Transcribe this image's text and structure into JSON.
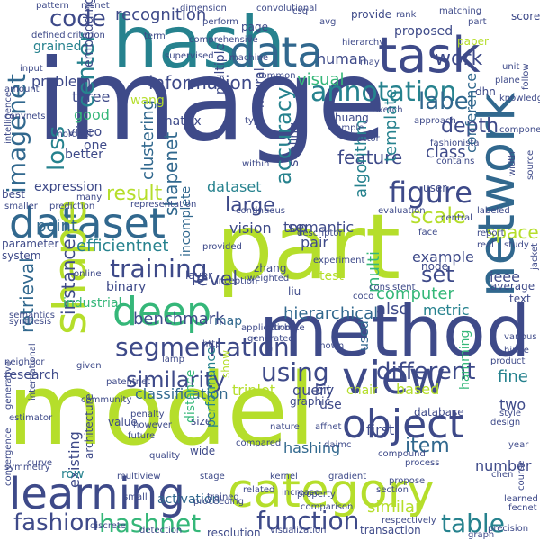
{
  "palette": {
    "background": "#ffffff",
    "navy": "#3e4a89",
    "blue": "#31688e",
    "teal": "#26828e",
    "green": "#35b779",
    "lime": "#b5de2b",
    "purple": "#482878"
  },
  "words": [
    {
      "text": "image",
      "color": "#3e4a89"
    },
    {
      "text": "model",
      "color": "#b5de2b"
    },
    {
      "text": "part",
      "color": "#b5de2b"
    },
    {
      "text": "hash",
      "color": "#26828e"
    },
    {
      "text": "method",
      "color": "#3e4a89"
    },
    {
      "text": "network",
      "color": "#31688e"
    },
    {
      "text": "dataset",
      "color": "#31688e"
    },
    {
      "text": "learning",
      "color": "#3e4a89"
    },
    {
      "text": "category",
      "color": "#b5de2b"
    },
    {
      "text": "object",
      "color": "#3e4a89"
    },
    {
      "text": "view",
      "color": "#3e4a89"
    },
    {
      "text": "data",
      "color": "#31688e"
    },
    {
      "text": "task",
      "color": "#3e4a89"
    },
    {
      "text": "shape",
      "color": "#b5de2b"
    },
    {
      "text": "deep",
      "color": "#35b779"
    },
    {
      "text": "segmentation",
      "color": "#3e4a89"
    },
    {
      "text": "annotation",
      "color": "#26828e"
    },
    {
      "text": "figure",
      "color": "#3e4a89"
    },
    {
      "text": "training",
      "color": "#3e4a89"
    },
    {
      "text": "function",
      "color": "#3e4a89"
    },
    {
      "text": "fashion",
      "color": "#3e4a89"
    },
    {
      "text": "different",
      "color": "#3e4a89"
    },
    {
      "text": "similarity",
      "color": "#3e4a89"
    },
    {
      "text": "using",
      "color": "#3e4a89"
    },
    {
      "text": "table",
      "color": "#26828e"
    },
    {
      "text": "hashnet",
      "color": "#35b779"
    },
    {
      "text": "imagenet",
      "color": "#31688e"
    },
    {
      "text": "code",
      "color": "#3e4a89"
    },
    {
      "text": "center",
      "color": "#26828e"
    },
    {
      "text": "loss",
      "color": "#26828e"
    },
    {
      "text": "accuracy",
      "color": "#26828e"
    },
    {
      "text": "label",
      "color": "#31688e"
    },
    {
      "text": "recognition",
      "color": "#3e4a89"
    },
    {
      "text": "information",
      "color": "#3e4a89"
    },
    {
      "text": "result",
      "color": "#b5de2b"
    },
    {
      "text": "large",
      "color": "#3e4a89"
    },
    {
      "text": "level",
      "color": "#3e4a89"
    },
    {
      "text": "set",
      "color": "#3e4a89"
    },
    {
      "text": "scale",
      "color": "#b5de2b"
    },
    {
      "text": "multi",
      "color": "#35b779"
    },
    {
      "text": "retrieval",
      "color": "#31688e"
    },
    {
      "text": "instance",
      "color": "#3e4a89"
    },
    {
      "text": "point",
      "color": "#31688e"
    },
    {
      "text": "efficientnet",
      "color": "#26828e"
    },
    {
      "text": "benchmark",
      "color": "#3e4a89"
    },
    {
      "text": "hierarchical",
      "color": "#31688e"
    },
    {
      "text": "classification",
      "color": "#31688e"
    },
    {
      "text": "item",
      "color": "#31688e"
    },
    {
      "text": "existing",
      "color": "#3e4a89"
    },
    {
      "text": "activation",
      "color": "#31688e"
    },
    {
      "text": "hashing",
      "color": "#31688e"
    },
    {
      "text": "similar",
      "color": "#b5de2b"
    },
    {
      "text": "number",
      "color": "#3e4a89"
    },
    {
      "text": "feature",
      "color": "#3e4a89"
    },
    {
      "text": "shapenet",
      "color": "#31688e"
    },
    {
      "text": "clustering",
      "color": "#31688e"
    },
    {
      "text": "depth",
      "color": "#3e4a89"
    },
    {
      "text": "work",
      "color": "#3e4a89"
    },
    {
      "text": "proposed",
      "color": "#3e4a89"
    },
    {
      "text": "human",
      "color": "#3e4a89"
    },
    {
      "text": "visual",
      "color": "#35b779"
    },
    {
      "text": "class",
      "color": "#3e4a89"
    },
    {
      "text": "template",
      "color": "#26828e"
    },
    {
      "text": "conference",
      "color": "#31688e"
    },
    {
      "text": "algorithm",
      "color": "#26828e"
    },
    {
      "text": "semantic",
      "color": "#3e4a89"
    },
    {
      "text": "top",
      "color": "#3e4a89"
    },
    {
      "text": "vision",
      "color": "#3e4a89"
    },
    {
      "text": "dataset",
      "color": "#26828e"
    },
    {
      "text": "pair",
      "color": "#3e4a89"
    },
    {
      "text": "space",
      "color": "#b5de2b"
    },
    {
      "text": "example",
      "color": "#3e4a89"
    },
    {
      "text": "computer",
      "color": "#35b779"
    },
    {
      "text": "ieee",
      "color": "#3e4a89"
    },
    {
      "text": "metric",
      "color": "#26828e"
    },
    {
      "text": "also",
      "color": "#3e4a89"
    },
    {
      "text": "based",
      "color": "#b5de2b"
    },
    {
      "text": "fine",
      "color": "#26828e"
    },
    {
      "text": "triplet",
      "color": "#b5de2b"
    },
    {
      "text": "query",
      "color": "#3e4a89"
    },
    {
      "text": "hamming",
      "color": "#35b779"
    },
    {
      "text": "two",
      "color": "#3e4a89"
    },
    {
      "text": "three",
      "color": "#3e4a89"
    },
    {
      "text": "good",
      "color": "#35b779"
    },
    {
      "text": "one",
      "color": "#3e4a89"
    },
    {
      "text": "better",
      "color": "#3e4a89"
    },
    {
      "text": "video",
      "color": "#3e4a89"
    },
    {
      "text": "problem",
      "color": "#3e4a89"
    },
    {
      "text": "expression",
      "color": "#3e4a89"
    },
    {
      "text": "matrix",
      "color": "#3e4a89"
    },
    {
      "text": "embedding",
      "color": "#3e4a89"
    },
    {
      "text": "wang",
      "color": "#b5de2b"
    },
    {
      "text": "grained",
      "color": "#26828e"
    },
    {
      "text": "multiple",
      "color": "#3e4a89"
    },
    {
      "text": "scaling",
      "color": "#3e4a89"
    },
    {
      "text": "neural",
      "color": "#3e4a89"
    },
    {
      "text": "incomplete",
      "color": "#31688e"
    },
    {
      "text": "industrial",
      "color": "#35b779"
    },
    {
      "text": "binary",
      "color": "#3e4a89"
    },
    {
      "text": "map",
      "color": "#31688e"
    },
    {
      "text": "used",
      "color": "#31688e"
    },
    {
      "text": "performance",
      "color": "#26828e"
    },
    {
      "text": "distance",
      "color": "#35b779"
    },
    {
      "text": "bit",
      "color": "#3e4a89"
    },
    {
      "text": "use",
      "color": "#3e4a89"
    },
    {
      "text": "first",
      "color": "#3e4a89"
    },
    {
      "text": "chair",
      "color": "#b5de2b"
    },
    {
      "text": "research",
      "color": "#3e4a89"
    },
    {
      "text": "row",
      "color": "#26828e"
    },
    {
      "text": "architecture",
      "color": "#3e4a89"
    },
    {
      "text": "value",
      "color": "#3e4a89"
    },
    {
      "text": "size",
      "color": "#3e4a89"
    },
    {
      "text": "wide",
      "color": "#3e4a89"
    },
    {
      "text": "graphic",
      "color": "#3e4a89"
    },
    {
      "text": "database",
      "color": "#3e4a89"
    },
    {
      "text": "resolution",
      "color": "#3e4a89"
    },
    {
      "text": "transaction",
      "color": "#3e4a89"
    },
    {
      "text": "average",
      "color": "#3e4a89"
    },
    {
      "text": "text",
      "color": "#3e4a89"
    },
    {
      "text": "node",
      "color": "#3e4a89"
    },
    {
      "text": "layer",
      "color": "#3e4a89"
    },
    {
      "text": "system",
      "color": "#3e4a89"
    },
    {
      "text": "parameter",
      "color": "#3e4a89"
    },
    {
      "text": "show",
      "color": "#b5de2b"
    },
    {
      "text": "zhang",
      "color": "#3e4a89"
    },
    {
      "text": "liu",
      "color": "#3e4a89"
    },
    {
      "text": "test",
      "color": "#b5de2b"
    },
    {
      "text": "pattern",
      "color": "#3e4a89"
    },
    {
      "text": "resnet",
      "color": "#3e4a89"
    },
    {
      "text": "page",
      "color": "#3e4a89"
    },
    {
      "text": "provide",
      "color": "#3e4a89"
    },
    {
      "text": "paper",
      "color": "#b5de2b"
    },
    {
      "text": "score",
      "color": "#3e4a89"
    },
    {
      "text": "sample",
      "color": "#3e4a89"
    },
    {
      "text": "huang",
      "color": "#3e4a89"
    },
    {
      "text": "contains",
      "color": "#3e4a89"
    },
    {
      "text": "fashionista",
      "color": "#3e4a89"
    },
    {
      "text": "dhn",
      "color": "#3e4a89"
    },
    {
      "text": "compared",
      "color": "#3e4a89"
    },
    {
      "text": "quality",
      "color": "#3e4a89"
    },
    {
      "text": "penalty",
      "color": "#3e4a89"
    },
    {
      "text": "however",
      "color": "#3e4a89"
    },
    {
      "text": "future",
      "color": "#3e4a89"
    },
    {
      "text": "coco",
      "color": "#3e4a89"
    },
    {
      "text": "experiment",
      "color": "#3e4a89"
    },
    {
      "text": "given",
      "color": "#3e4a89"
    },
    {
      "text": "patentnet",
      "color": "#3e4a89"
    },
    {
      "text": "within",
      "color": "#3e4a89"
    },
    {
      "text": "supervised",
      "color": "#3e4a89"
    },
    {
      "text": "convolutional",
      "color": "#3e4a89"
    },
    {
      "text": "stage",
      "color": "#3e4a89"
    },
    {
      "text": "increase",
      "color": "#3e4a89"
    },
    {
      "text": "comparison",
      "color": "#3e4a89"
    },
    {
      "text": "respectively",
      "color": "#3e4a89"
    },
    {
      "text": "section",
      "color": "#3e4a89"
    },
    {
      "text": "precision",
      "color": "#3e4a89"
    },
    {
      "text": "course",
      "color": "#3e4a89"
    },
    {
      "text": "chen",
      "color": "#3e4a89"
    },
    {
      "text": "visualization",
      "color": "#3e4a89"
    },
    {
      "text": "proceeding",
      "color": "#3e4a89"
    },
    {
      "text": "trained",
      "color": "#3e4a89"
    },
    {
      "text": "international",
      "color": "#3e4a89"
    },
    {
      "text": "convnets",
      "color": "#3e4a89"
    },
    {
      "text": "input",
      "color": "#3e4a89"
    },
    {
      "text": "defined",
      "color": "#3e4a89"
    },
    {
      "text": "criterion",
      "color": "#3e4a89"
    },
    {
      "text": "many",
      "color": "#3e4a89"
    },
    {
      "text": "prediction",
      "color": "#3e4a89"
    },
    {
      "text": "representation",
      "color": "#3e4a89"
    },
    {
      "text": "online",
      "color": "#3e4a89"
    },
    {
      "text": "semantics",
      "color": "#3e4a89"
    },
    {
      "text": "synthesis",
      "color": "#3e4a89"
    },
    {
      "text": "neighbor",
      "color": "#3e4a89"
    },
    {
      "text": "best",
      "color": "#3e4a89"
    },
    {
      "text": "smaller",
      "color": "#3e4a89"
    },
    {
      "text": "hierarchy",
      "color": "#3e4a89"
    },
    {
      "text": "machine",
      "color": "#3e4a89"
    },
    {
      "text": "common",
      "color": "#3e4a89"
    },
    {
      "text": "approach",
      "color": "#3e4a89"
    },
    {
      "text": "unit",
      "color": "#3e4a89"
    },
    {
      "text": "type",
      "color": "#3e4a89"
    },
    {
      "text": "continuous",
      "color": "#3e4a89"
    },
    {
      "text": "inception",
      "color": "#3e4a89"
    },
    {
      "text": "attribute",
      "color": "#3e4a89"
    },
    {
      "text": "real",
      "color": "#3e4a89"
    },
    {
      "text": "central",
      "color": "#3e4a89"
    },
    {
      "text": "study",
      "color": "#3e4a89"
    },
    {
      "text": "user",
      "color": "#3e4a89"
    },
    {
      "text": "face",
      "color": "#3e4a89"
    },
    {
      "text": "evaluation",
      "color": "#3e4a89"
    },
    {
      "text": "application",
      "color": "#3e4a89"
    },
    {
      "text": "generated",
      "color": "#3e4a89"
    },
    {
      "text": "consistent",
      "color": "#3e4a89"
    },
    {
      "text": "various",
      "color": "#3e4a89"
    },
    {
      "text": "hinge",
      "color": "#3e4a89"
    },
    {
      "text": "product",
      "color": "#3e4a89"
    },
    {
      "text": "process",
      "color": "#3e4a89"
    },
    {
      "text": "propose",
      "color": "#3e4a89"
    },
    {
      "text": "design",
      "color": "#3e4a89"
    },
    {
      "text": "learned",
      "color": "#3e4a89"
    },
    {
      "text": "fecnet",
      "color": "#3e4a89"
    },
    {
      "text": "gradient",
      "color": "#3e4a89"
    },
    {
      "text": "kernel",
      "color": "#3e4a89"
    },
    {
      "text": "small",
      "color": "#3e4a89"
    },
    {
      "text": "provided",
      "color": "#3e4a89"
    },
    {
      "text": "http",
      "color": "#3e4a89"
    },
    {
      "text": "weighted",
      "color": "#3e4a89"
    },
    {
      "text": "shown",
      "color": "#3e4a89"
    },
    {
      "text": "report",
      "color": "#3e4a89"
    },
    {
      "text": "width",
      "color": "#3e4a89"
    },
    {
      "text": "source",
      "color": "#3e4a89"
    },
    {
      "text": "knowledge",
      "color": "#3e4a89"
    },
    {
      "text": "descriptor",
      "color": "#3e4a89"
    },
    {
      "text": "generative",
      "color": "#3e4a89"
    },
    {
      "text": "property",
      "color": "#3e4a89"
    },
    {
      "text": "convergence",
      "color": "#3e4a89"
    },
    {
      "text": "detection",
      "color": "#3e4a89"
    },
    {
      "text": "comprehensive",
      "color": "#3e4a89"
    },
    {
      "text": "perform",
      "color": "#3e4a89"
    },
    {
      "text": "sketch",
      "color": "#3e4a89"
    },
    {
      "text": "plane",
      "color": "#3e4a89"
    },
    {
      "text": "avg",
      "color": "#3e4a89"
    },
    {
      "text": "mordnet",
      "color": "#3e4a89"
    },
    {
      "text": "amount",
      "color": "#3e4a89"
    },
    {
      "text": "symmetry",
      "color": "#3e4a89"
    },
    {
      "text": "curve",
      "color": "#3e4a89"
    },
    {
      "text": "multiview",
      "color": "#3e4a89"
    },
    {
      "text": "estimator",
      "color": "#3e4a89"
    },
    {
      "text": "compound",
      "color": "#3e4a89"
    },
    {
      "text": "style",
      "color": "#3e4a89"
    },
    {
      "text": "nature",
      "color": "#3e4a89"
    },
    {
      "text": "daimc",
      "color": "#3e4a89"
    },
    {
      "text": "affnet",
      "color": "#3e4a89"
    },
    {
      "text": "csq",
      "color": "#3e4a89"
    },
    {
      "text": "follow",
      "color": "#3e4a89"
    },
    {
      "text": "rank",
      "color": "#3e4a89"
    },
    {
      "text": "matching",
      "color": "#3e4a89"
    },
    {
      "text": "term",
      "color": "#3e4a89"
    },
    {
      "text": "part",
      "color": "#3e4a89"
    },
    {
      "text": "jacket",
      "color": "#3e4a89"
    },
    {
      "text": "year",
      "color": "#3e4a89"
    },
    {
      "text": "intelligence",
      "color": "#3e4a89"
    },
    {
      "text": "may",
      "color": "#3e4a89"
    },
    {
      "text": "related",
      "color": "#3e4a89"
    },
    {
      "text": "discrete",
      "color": "#3e4a89"
    },
    {
      "text": "graph",
      "color": "#3e4a89"
    },
    {
      "text": "component",
      "color": "#3e4a89"
    },
    {
      "text": "dimension",
      "color": "#3e4a89"
    },
    {
      "text": "lamp",
      "color": "#3e4a89"
    },
    {
      "text": "community",
      "color": "#3e4a89"
    },
    {
      "text": "vector",
      "color": "#3e4a89"
    },
    {
      "text": "labeled",
      "color": "#3e4a89"
    },
    {
      "text": "idea",
      "color": "#3e4a89"
    },
    {
      "text": "clip",
      "color": "#3e4a89"
    },
    {
      "text": "accurate",
      "color": "#3e4a89"
    },
    {
      "text": "stacked",
      "color": "#3e4a89"
    },
    {
      "text": "art",
      "color": "#3e4a89"
    },
    {
      "text": "ranking",
      "color": "#3e4a89"
    },
    {
      "text": "lin",
      "color": "#3e4a89"
    },
    {
      "text": "dog",
      "color": "#3e4a89"
    },
    {
      "text": "ground",
      "color": "#3e4a89"
    },
    {
      "text": "truth",
      "color": "#3e4a89"
    },
    {
      "text": "domain",
      "color": "#3e4a89"
    },
    {
      "text": "arxiv",
      "color": "#3e4a89"
    },
    {
      "text": "final",
      "color": "#3e4a89"
    },
    {
      "text": "edge",
      "color": "#3e4a89"
    },
    {
      "text": "step",
      "color": "#3e4a89"
    },
    {
      "text": "mean",
      "color": "#3e4a89"
    },
    {
      "text": "xu",
      "color": "#3e4a89"
    }
  ]
}
